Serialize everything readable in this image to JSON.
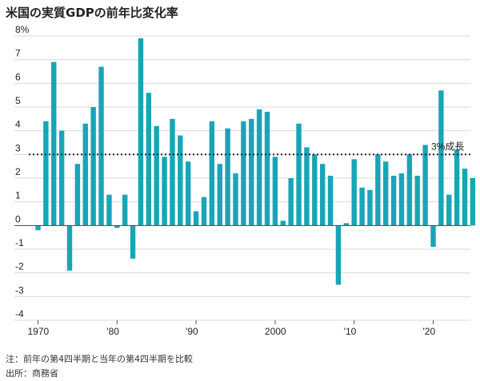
{
  "title": "米国の実質GDPの前年比変化率",
  "notes": {
    "note": "注：前年の第4四半期と当年の第4四半期を比較",
    "source": "出所：商務省"
  },
  "colors": {
    "bar": "#18a5b7",
    "grid": "#d9d9d9",
    "zero": "#444444",
    "reference": "#222222"
  },
  "chart_data": {
    "type": "bar",
    "title": "米国の実質GDPの前年比変化率",
    "ylabel": "",
    "xlabel": "",
    "ylim": [
      -4,
      8
    ],
    "yticks": [
      "8%",
      "7",
      "6",
      "5",
      "4",
      "3",
      "2",
      "1",
      "0",
      "-1",
      "-2",
      "-3",
      "-4"
    ],
    "xtick_labels": [
      {
        "year": 1970,
        "label": "1970"
      },
      {
        "year": 1980,
        "label": "'80"
      },
      {
        "year": 1990,
        "label": "'90"
      },
      {
        "year": 2000,
        "label": "2000"
      },
      {
        "year": 2010,
        "label": "'10"
      },
      {
        "year": 2020,
        "label": "'20"
      }
    ],
    "grid": true,
    "reference_line": {
      "value": 3,
      "label": "3%成長",
      "style": "dotted"
    },
    "categories": [
      1970,
      1971,
      1972,
      1973,
      1974,
      1975,
      1976,
      1977,
      1978,
      1979,
      1980,
      1981,
      1982,
      1983,
      1984,
      1985,
      1986,
      1987,
      1988,
      1989,
      1990,
      1991,
      1992,
      1993,
      1994,
      1995,
      1996,
      1997,
      1998,
      1999,
      2000,
      2001,
      2002,
      2003,
      2004,
      2005,
      2006,
      2007,
      2008,
      2009,
      2010,
      2011,
      2012,
      2013,
      2014,
      2015,
      2016,
      2017,
      2018,
      2019,
      2020,
      2021,
      2022,
      2023,
      2024,
      2025
    ],
    "values": [
      -0.2,
      4.4,
      6.9,
      4.0,
      -1.9,
      2.6,
      4.3,
      5.0,
      6.7,
      1.3,
      -0.1,
      1.3,
      -1.4,
      7.9,
      5.6,
      4.2,
      2.9,
      4.5,
      3.8,
      2.7,
      0.6,
      1.2,
      4.4,
      2.6,
      4.1,
      2.2,
      4.4,
      4.5,
      4.9,
      4.8,
      2.9,
      0.2,
      2.0,
      4.3,
      3.3,
      3.0,
      2.6,
      2.1,
      -2.5,
      0.1,
      2.8,
      1.6,
      1.5,
      3.0,
      2.7,
      2.1,
      2.2,
      3.0,
      2.1,
      3.4,
      -0.9,
      5.7,
      1.3,
      3.2,
      2.4,
      2.0
    ]
  }
}
